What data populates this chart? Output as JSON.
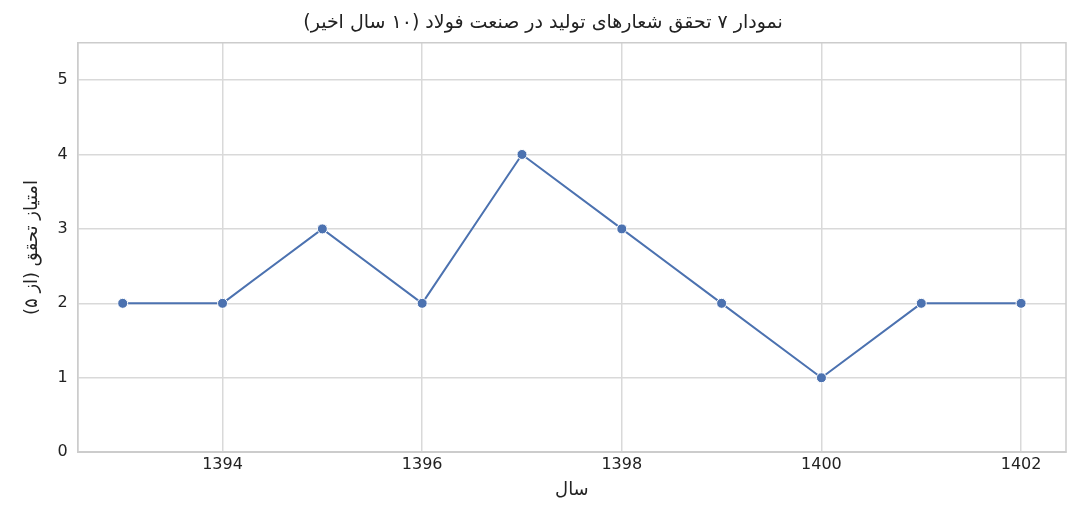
{
  "chart_data": {
    "type": "line",
    "title": "نمودار ۷ تحقق شعارهای تولید در صنعت فولاد (۱۰ سال اخیر)",
    "xlabel": "سال",
    "ylabel": "امتیاز تحقق (از ۵)",
    "x": [
      1393,
      1394,
      1395,
      1396,
      1397,
      1398,
      1399,
      1400,
      1401,
      1402
    ],
    "series": [
      {
        "color": "#4c72b0",
        "values": [
          2,
          2,
          3,
          2,
          4,
          3,
          2,
          1,
          2,
          2
        ]
      }
    ],
    "xlim": [
      1392.55,
      1402.45
    ],
    "xticks": [
      1394,
      1396,
      1398,
      1400,
      1402
    ],
    "ylim": [
      0,
      5.5
    ],
    "yticks": [
      0,
      1,
      2,
      3,
      4,
      5
    ],
    "grid": true,
    "marker": "circle",
    "line_style": "solid",
    "legend": false
  }
}
